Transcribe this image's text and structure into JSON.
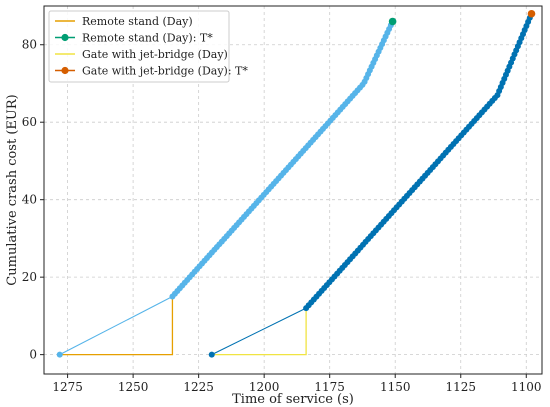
{
  "chart_data": {
    "type": "line",
    "title": "",
    "xlabel": "Time of service (s)",
    "ylabel": "Cumulative crash cost (EUR)",
    "x_axis_reversed": true,
    "xlim": [
      1284,
      1094
    ],
    "ylim": [
      -5,
      90
    ],
    "xticks": [
      1275,
      1250,
      1225,
      1200,
      1175,
      1150,
      1125,
      1100
    ],
    "yticks": [
      0,
      20,
      40,
      60,
      80
    ],
    "grid": true,
    "grid_style": "dashed",
    "legend_position": "top-left",
    "series": [
      {
        "name": "Remote stand (Day)",
        "color": "#E69F00",
        "style": "line",
        "points": [
          [
            1278,
            0
          ],
          [
            1235,
            0
          ],
          [
            1235,
            15
          ]
        ]
      },
      {
        "name": "Remote stand (Day): T*",
        "color": "#009E73",
        "style": "marker",
        "points": [
          [
            1151,
            86
          ]
        ]
      },
      {
        "name": "Gate with jet-bridge (Day)",
        "color": "#F0E442",
        "style": "line",
        "points": [
          [
            1220,
            0
          ],
          [
            1184,
            0
          ],
          [
            1184,
            12
          ]
        ]
      },
      {
        "name": "Gate with jet-bridge (Day): T*",
        "color": "#D55E00",
        "style": "marker",
        "points": [
          [
            1098,
            88
          ]
        ]
      },
      {
        "name": "",
        "color": "#56B4E9",
        "style": "dotted-line",
        "dot_count": 95,
        "points": [
          [
            1278,
            0
          ],
          [
            1235,
            15
          ],
          [
            1162,
            70
          ],
          [
            1151,
            86
          ]
        ]
      },
      {
        "name": "",
        "color": "#0072B2",
        "style": "dotted-line",
        "dot_count": 95,
        "points": [
          [
            1220,
            0
          ],
          [
            1184,
            12
          ],
          [
            1111,
            67
          ],
          [
            1098,
            88
          ]
        ]
      }
    ]
  }
}
